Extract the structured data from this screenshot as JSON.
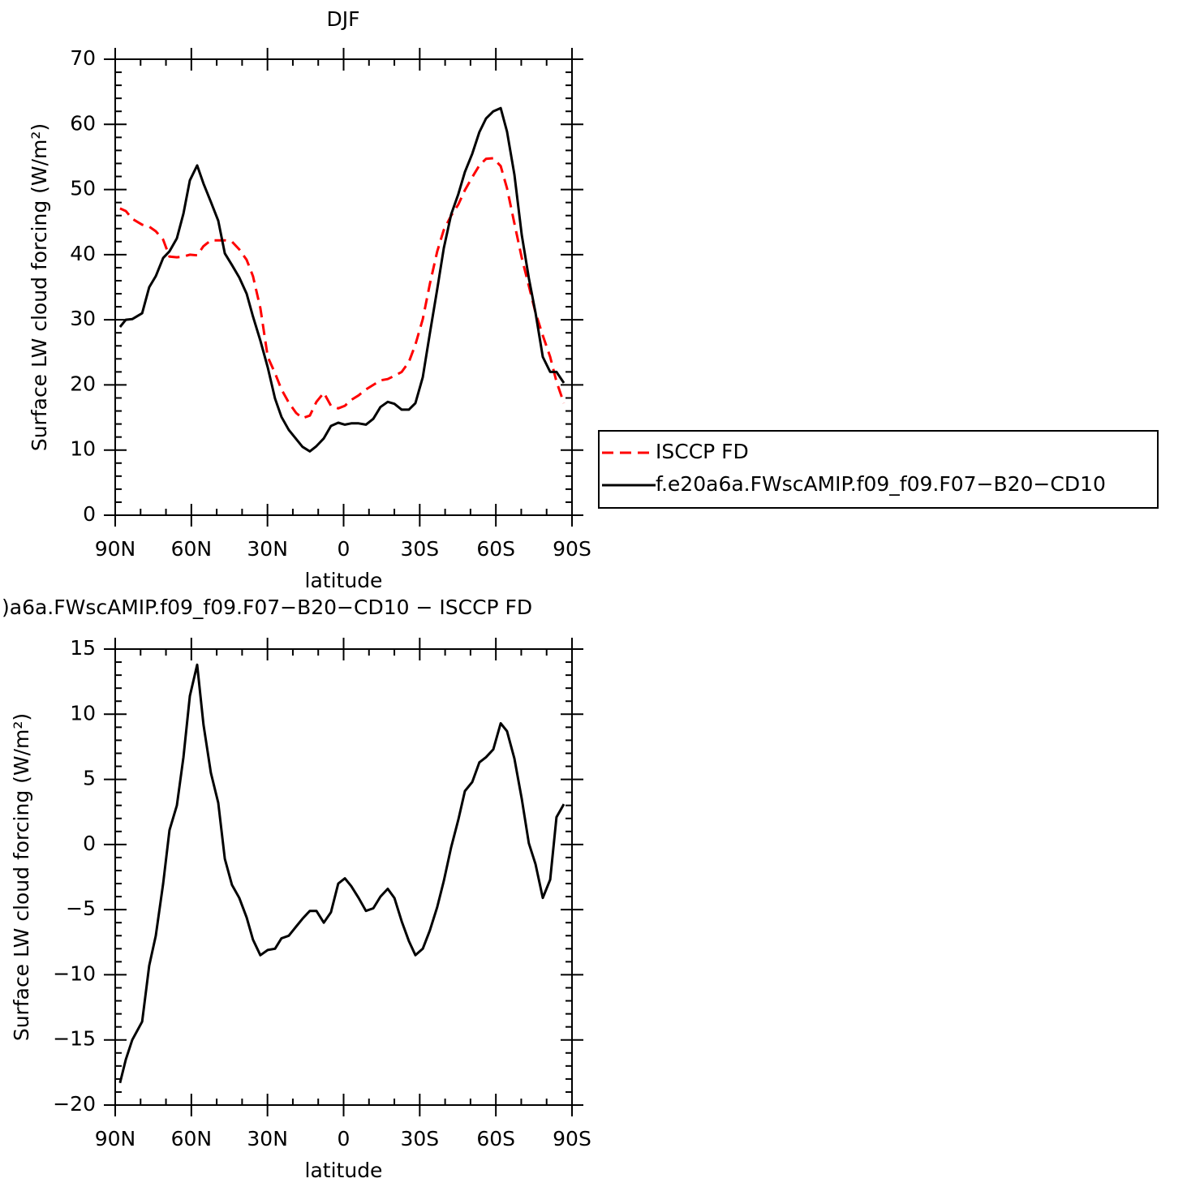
{
  "chart_data": [
    {
      "type": "line",
      "title": "DJF",
      "x_label": "latitude",
      "y_label": "Surface LW cloud forcing (W/m²)",
      "x": [
        88.1,
        85.8,
        83.3,
        79.4,
        76.6,
        74.0,
        71.1,
        68.6,
        65.7,
        63.1,
        60.6,
        57.7,
        55.2,
        52.3,
        49.4,
        46.8,
        44.0,
        41.1,
        38.2,
        35.7,
        32.8,
        29.9,
        27.0,
        24.5,
        21.6,
        18.7,
        16.2,
        13.3,
        10.7,
        7.8,
        5.0,
        2.1,
        -0.5,
        -3.0,
        -5.9,
        -8.8,
        -11.7,
        -14.5,
        -17.4,
        -20.0,
        -22.9,
        -25.7,
        -28.3,
        -31.2,
        -34.0,
        -36.9,
        -39.5,
        -42.4,
        -45.2,
        -47.8,
        -50.7,
        -53.5,
        -56.1,
        -59.0,
        -61.9,
        -64.4,
        -67.3,
        -70.2,
        -73.0,
        -75.6,
        -78.5,
        -81.4,
        -83.9,
        -86.8
      ],
      "series": [
        {
          "name": "ISCCP FD",
          "color": "#ff0000",
          "dash": "dashed",
          "values": [
            47.1,
            46.7,
            45.5,
            44.6,
            44.3,
            43.6,
            42.3,
            39.7,
            39.6,
            39.7,
            40.0,
            39.9,
            41.3,
            42.2,
            42.2,
            42.2,
            42.0,
            40.8,
            39.2,
            36.7,
            31.8,
            24.3,
            21.8,
            19.3,
            17.3,
            15.7,
            14.9,
            15.3,
            17.4,
            18.8,
            16.8,
            16.4,
            16.8,
            17.7,
            18.4,
            19.3,
            20.0,
            20.7,
            20.9,
            21.4,
            22.0,
            23.5,
            26.2,
            30.1,
            35.5,
            40.5,
            43.8,
            46.0,
            47.7,
            49.9,
            51.9,
            53.7,
            54.7,
            54.8,
            53.6,
            50.2,
            44.8,
            39.5,
            35.2,
            31.1,
            27.6,
            24.3,
            20.5,
            17.2
          ]
        },
        {
          "name": "f.e20a6a.FWscAMIP.f09_f09.F07−B20−CD10",
          "color": "#000000",
          "values": [
            28.9,
            30.0,
            30.1,
            31.0,
            35.0,
            36.7,
            39.5,
            40.5,
            42.5,
            46.3,
            51.4,
            53.7,
            50.9,
            48.1,
            45.2,
            40.2,
            38.4,
            36.5,
            34.0,
            30.5,
            26.8,
            22.7,
            17.9,
            15.1,
            13.1,
            11.7,
            10.5,
            9.8,
            10.6,
            11.8,
            13.7,
            14.2,
            13.9,
            14.1,
            14.1,
            13.9,
            14.8,
            16.6,
            17.4,
            17.1,
            16.2,
            16.2,
            17.2,
            21.2,
            27.9,
            34.7,
            41.0,
            46.2,
            49.3,
            52.7,
            55.5,
            58.8,
            60.9,
            62.0,
            62.5,
            58.9,
            52.3,
            43.0,
            36.4,
            31.1,
            24.3,
            22.0,
            22.0,
            20.3
          ]
        }
      ],
      "xlim": [
        90,
        -90
      ],
      "xticks": [
        {
          "value": 90,
          "label": "90N"
        },
        {
          "value": 60,
          "label": "60N"
        },
        {
          "value": 30,
          "label": "30N"
        },
        0,
        {
          "value": -30,
          "label": "30S"
        },
        {
          "value": -60,
          "label": "60S"
        },
        {
          "value": -90,
          "label": "90S"
        }
      ],
      "ylim": [
        0,
        70
      ],
      "yticks": [
        0,
        10,
        20,
        30,
        40,
        50,
        60,
        70
      ],
      "legend": "right"
    },
    {
      "type": "line",
      "title": ")a6a.FWscAMIP.f09_f09.F07−B20−CD10 − ISCCP FD",
      "x_label": "latitude",
      "y_label": "Surface LW cloud forcing (W/m²)",
      "x": [
        88.1,
        85.8,
        83.3,
        79.4,
        76.6,
        74.0,
        71.1,
        68.6,
        65.7,
        63.1,
        60.6,
        57.7,
        55.2,
        52.3,
        49.4,
        46.8,
        44.0,
        41.1,
        38.2,
        35.7,
        32.8,
        29.9,
        27.0,
        24.5,
        21.6,
        18.7,
        16.2,
        13.3,
        10.7,
        7.8,
        5.0,
        2.1,
        -0.5,
        -3.0,
        -5.9,
        -8.8,
        -11.7,
        -14.5,
        -17.4,
        -20.0,
        -22.9,
        -25.7,
        -28.3,
        -31.2,
        -34.0,
        -36.9,
        -39.5,
        -42.4,
        -45.2,
        -47.8,
        -50.7,
        -53.5,
        -56.1,
        -59.0,
        -61.9,
        -64.4,
        -67.3,
        -70.2,
        -73.0,
        -75.6,
        -78.5,
        -81.4,
        -83.9,
        -86.8
      ],
      "values": [
        -18.3,
        -16.5,
        -15.0,
        -13.6,
        -9.3,
        -7.0,
        -3.0,
        1.1,
        3.0,
        6.7,
        11.4,
        13.8,
        9.2,
        5.5,
        3.2,
        -1.1,
        -3.1,
        -4.1,
        -5.6,
        -7.3,
        -8.5,
        -8.1,
        -8.0,
        -7.2,
        -7.0,
        -6.3,
        -5.7,
        -5.1,
        -5.1,
        -6.0,
        -5.2,
        -3.0,
        -2.6,
        -3.2,
        -4.1,
        -5.1,
        -4.9,
        -4.0,
        -3.4,
        -4.1,
        -5.9,
        -7.4,
        -8.5,
        -8.0,
        -6.6,
        -4.8,
        -2.8,
        -0.2,
        1.9,
        4.1,
        4.8,
        6.3,
        6.7,
        7.3,
        9.3,
        8.7,
        6.6,
        3.5,
        0.1,
        -1.5,
        -4.1,
        -2.7,
        2.1,
        3.1
      ],
      "color": "#000000",
      "xlim": [
        90,
        -90
      ],
      "xticks": [
        {
          "value": 90,
          "label": "90N"
        },
        {
          "value": 60,
          "label": "60N"
        },
        {
          "value": 30,
          "label": "30N"
        },
        0,
        {
          "value": -30,
          "label": "30S"
        },
        {
          "value": -60,
          "label": "60S"
        },
        {
          "value": -90,
          "label": "90S"
        }
      ],
      "ylim": [
        -20,
        15
      ],
      "yticks": [
        {
          "value": -20,
          "label": "−20"
        },
        {
          "value": -15,
          "label": "−15"
        },
        {
          "value": -10,
          "label": "−10"
        },
        {
          "value": -5,
          "label": "−5"
        },
        0,
        5,
        10,
        15
      ]
    }
  ]
}
